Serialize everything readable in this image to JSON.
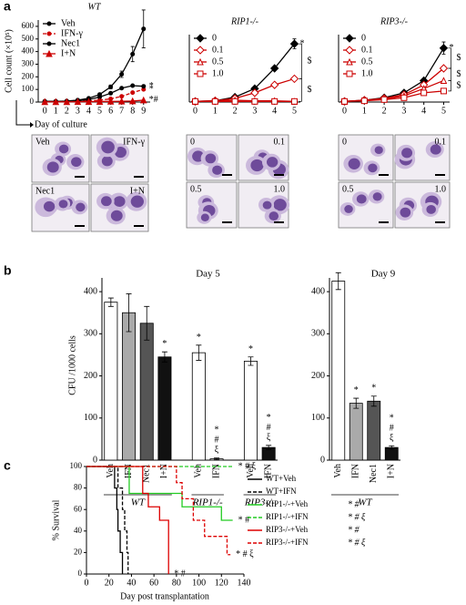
{
  "panels": [
    "a",
    "b",
    "c"
  ],
  "micrographs": {
    "wt": [
      "Veh",
      "IFN-γ",
      "Nec1",
      "I+N"
    ],
    "rip1": [
      "0",
      "0.1",
      "0.5",
      "1.0"
    ],
    "rip3": [
      "0",
      "0.1",
      "0.5",
      "1.0"
    ]
  },
  "chart_data": [
    {
      "type": "line",
      "title": "WT",
      "ylabel": "Cell count (×10⁵)",
      "xlabel": "Day of culture",
      "x": [
        0,
        1,
        2,
        3,
        4,
        5,
        6,
        7,
        8,
        9
      ],
      "xlim": [
        -0.6,
        9.6
      ],
      "xticks": [
        0,
        1,
        2,
        3,
        4,
        5,
        6,
        7,
        8,
        9
      ],
      "ylim": [
        0,
        650
      ],
      "yticks": [
        0,
        100,
        200,
        300,
        400,
        500,
        600
      ],
      "legend": "upper left",
      "series": [
        {
          "name": "Veh",
          "color": "#000000",
          "marker": "circle",
          "values": [
            5,
            5,
            8,
            15,
            30,
            60,
            120,
            220,
            380,
            580
          ],
          "errors": [
            0,
            0,
            0,
            0,
            5,
            10,
            15,
            25,
            60,
            150
          ],
          "note": null
        },
        {
          "name": "IFN-γ",
          "color": "#cc0000",
          "dash": true,
          "marker": "circle",
          "values": [
            5,
            5,
            5,
            7,
            10,
            15,
            25,
            45,
            75,
            100
          ],
          "note": "*"
        },
        {
          "name": "Nec1",
          "color": "#000000",
          "marker": "circle",
          "values": [
            5,
            5,
            6,
            10,
            20,
            40,
            70,
            110,
            130,
            125
          ],
          "note": "*"
        },
        {
          "name": "I+N",
          "color": "#cc0000",
          "marker": "triangle",
          "values": [
            2,
            2,
            2,
            3,
            3,
            4,
            5,
            6,
            8,
            15
          ],
          "note": "*#"
        }
      ]
    },
    {
      "type": "line",
      "title": "RIP1-/-",
      "x": [
        0,
        1,
        2,
        3,
        4,
        5
      ],
      "xlim": [
        -0.3,
        5.3
      ],
      "xticks": [
        0,
        1,
        2,
        3,
        4,
        5
      ],
      "ylim": [
        0,
        110
      ],
      "legend": "upper left",
      "series": [
        {
          "name": "0",
          "color": "#000000",
          "marker": "diamond",
          "values": [
            1,
            2,
            8,
            22,
            55,
            95
          ],
          "errors": [
            0,
            0,
            1,
            2,
            3,
            8
          ],
          "note": "*"
        },
        {
          "name": "0.1",
          "color": "#cc0000",
          "marker": "diamond-open",
          "values": [
            1,
            2,
            6,
            15,
            28,
            38
          ],
          "errors": [
            0,
            0,
            0,
            1,
            2,
            3
          ],
          "note": "$"
        },
        {
          "name": "0.5",
          "color": "#cc0000",
          "marker": "triangle-open",
          "values": [
            1,
            2,
            3,
            2,
            2,
            1
          ],
          "note": "$"
        },
        {
          "name": "1.0",
          "color": "#cc0000",
          "marker": "square-open",
          "values": [
            1,
            1,
            1,
            1,
            1,
            1
          ],
          "note": null
        }
      ]
    },
    {
      "type": "line",
      "title": "RIP3-/-",
      "x": [
        0,
        1,
        2,
        3,
        4,
        5
      ],
      "xlim": [
        -0.3,
        5.3
      ],
      "xticks": [
        0,
        1,
        2,
        3,
        4,
        5
      ],
      "ylim": [
        0,
        110
      ],
      "legend": "upper left",
      "series": [
        {
          "name": "0",
          "color": "#000000",
          "marker": "diamond",
          "values": [
            1,
            3,
            7,
            15,
            35,
            88
          ],
          "errors": [
            0,
            0,
            1,
            1,
            3,
            10
          ],
          "note": "*"
        },
        {
          "name": "0.1",
          "color": "#cc0000",
          "marker": "diamond-open",
          "values": [
            1,
            3,
            6,
            12,
            28,
            55
          ],
          "note": "$"
        },
        {
          "name": "0.5",
          "color": "#cc0000",
          "marker": "triangle-open",
          "values": [
            1,
            3,
            5,
            10,
            22,
            35
          ],
          "note": "$"
        },
        {
          "name": "1.0",
          "color": "#cc0000",
          "marker": "square-open",
          "values": [
            1,
            2,
            4,
            7,
            15,
            18
          ],
          "note": "$"
        }
      ]
    },
    {
      "type": "bar",
      "title": "Day 5",
      "ylabel": "CFU /1000 cells",
      "ylim": [
        0,
        450
      ],
      "yticks": [
        0,
        100,
        200,
        300,
        400
      ],
      "categories": [
        "Veh",
        "IFN",
        "Nec1",
        "I+N",
        "Veh",
        "IFN",
        "Veh",
        "IFN"
      ],
      "values": [
        375,
        350,
        325,
        245,
        255,
        3,
        235,
        30
      ],
      "errors": [
        10,
        45,
        40,
        12,
        18,
        2,
        10,
        5
      ],
      "colors": [
        "#ffffff",
        "#aaaaaa",
        "#555555",
        "#111111",
        "#ffffff",
        "#ffffff",
        "#ffffff",
        "#111111"
      ],
      "notes": [
        null,
        null,
        null,
        "*",
        "*",
        "*#ξ",
        "*",
        "*#ξ"
      ],
      "groups": [
        {
          "name": "WT",
          "first": 0,
          "last": 3
        },
        {
          "name": "RIP1-/-",
          "first": 4,
          "last": 5
        },
        {
          "name": "RIP3-/-",
          "first": 6,
          "last": 7
        }
      ]
    },
    {
      "type": "bar",
      "title": "Day 9",
      "ylim": [
        0,
        450
      ],
      "yticks": [
        0,
        100,
        200,
        300,
        400
      ],
      "categories": [
        "Veh",
        "IFN",
        "Nec1",
        "I+N"
      ],
      "values": [
        425,
        135,
        140,
        30
      ],
      "errors": [
        20,
        12,
        12,
        4
      ],
      "colors": [
        "#ffffff",
        "#aaaaaa",
        "#555555",
        "#111111"
      ],
      "notes": [
        null,
        "*",
        "*",
        "*#ξ"
      ],
      "groups": [
        {
          "name": "WT",
          "first": 0,
          "last": 3
        }
      ]
    },
    {
      "type": "line",
      "ylabel": "% Survival",
      "xlabel": "Day post transplantation",
      "xlim": [
        0,
        140
      ],
      "xticks": [
        0,
        20,
        40,
        60,
        80,
        100,
        120,
        140
      ],
      "ylim": [
        0,
        100
      ],
      "yticks": [
        0,
        20,
        40,
        60,
        80,
        100
      ],
      "legend": "right",
      "series": [
        {
          "name": "WT+Veh",
          "color": "#000000",
          "x": [
            0,
            25,
            25,
            27,
            27,
            28,
            28,
            30,
            30,
            32,
            32
          ],
          "values": [
            100,
            100,
            80,
            80,
            60,
            60,
            40,
            40,
            20,
            20,
            0
          ],
          "note": null
        },
        {
          "name": "WT+IFN",
          "color": "#000000",
          "dash": true,
          "x": [
            0,
            28,
            28,
            32,
            32,
            34,
            34,
            36,
            36,
            37,
            37
          ],
          "values": [
            100,
            100,
            80,
            80,
            60,
            60,
            40,
            40,
            20,
            20,
            0
          ],
          "note": null
        },
        {
          "name": "RIP1-/-+Veh",
          "color": "#22cc22",
          "x": [
            0,
            38,
            38,
            85,
            85,
            120,
            120,
            130
          ],
          "values": [
            100,
            100,
            75,
            75,
            62.5,
            62.5,
            50,
            50
          ],
          "note": "* #"
        },
        {
          "name": "RIP1-/-+IFN",
          "color": "#22cc22",
          "dash": true,
          "x": [
            0,
            130
          ],
          "values": [
            100,
            100
          ],
          "note": "* # ξ"
        },
        {
          "name": "RIP3-/-+Veh",
          "color": "#dd0000",
          "x": [
            0,
            50,
            50,
            55,
            55,
            65,
            65,
            73,
            73
          ],
          "values": [
            100,
            100,
            75,
            75,
            62.5,
            62.5,
            50,
            50,
            0
          ],
          "note": "* #"
        },
        {
          "name": "RIP3-/-+IFN",
          "color": "#dd0000",
          "dash": true,
          "x": [
            0,
            80,
            80,
            85,
            85,
            95,
            95,
            105,
            105,
            125,
            125,
            128
          ],
          "values": [
            100,
            100,
            85,
            85,
            70,
            70,
            50,
            50,
            35,
            35,
            18,
            18
          ],
          "note": "* # ξ"
        }
      ]
    }
  ]
}
